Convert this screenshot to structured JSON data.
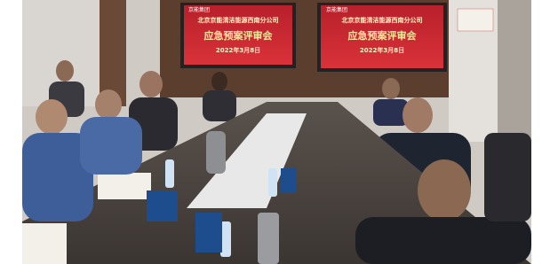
{
  "screens": [
    {
      "logo": "京能集团",
      "organization": "北京京能清洁能源西南分公司",
      "title": "应急预案评审会",
      "date": "2022年3月8日"
    },
    {
      "logo": "京能集团",
      "organization": "北京京能清洁能源西南分公司",
      "title": "应急预案评审会",
      "date": "2022年3月8日"
    }
  ]
}
